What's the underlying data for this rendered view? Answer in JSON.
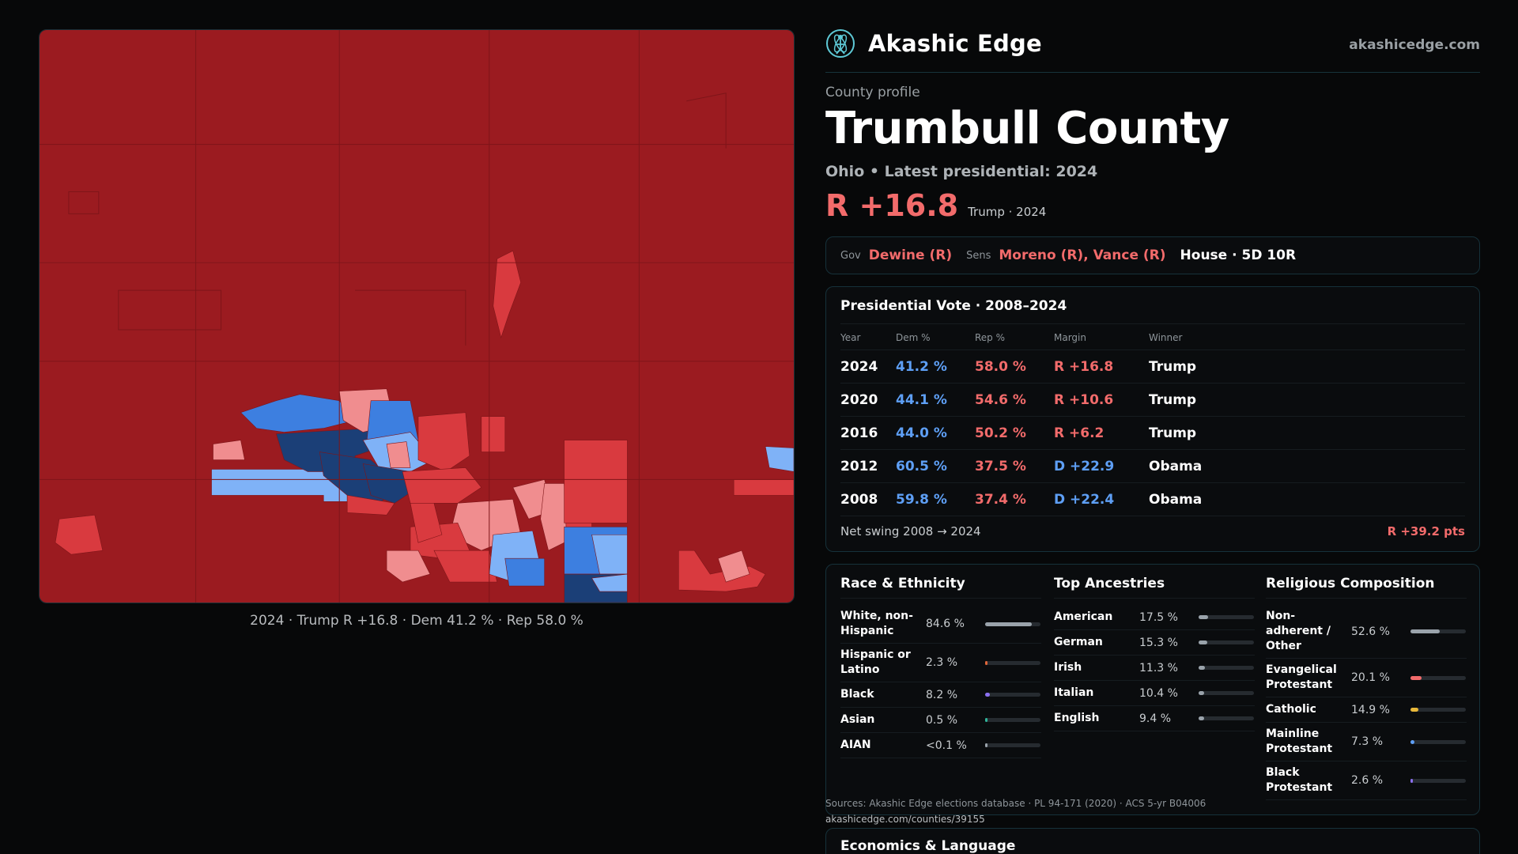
{
  "header": {
    "brand_name": "Akashic Edge",
    "brand_domain": "akashicedge.com",
    "logo_icon": "atom-figure-icon"
  },
  "profile": {
    "eyebrow": "County profile",
    "title": "Trumbull County",
    "subtitle": "Ohio • Latest presidential: 2024",
    "margin": "R +16.8",
    "margin_meta": "Trump · 2024"
  },
  "officials": {
    "gov_label": "Gov",
    "gov_value": "Dewine (R)",
    "sens_label": "Sens",
    "sens_value": "Moreno (R), Vance (R)",
    "house": "House · 5D 10R"
  },
  "map": {
    "caption": "2024 · Trump R +16.8 · Dem 41.2 % · Rep 58.0 %",
    "colors": {
      "safe_r": "#9b1b20",
      "lean_r": "#d93a3f",
      "tilt_r": "#f08d8f",
      "tilt_d": "#7fb2f7",
      "lean_d": "#3d7fe0",
      "safe_d": "#1b3f77"
    }
  },
  "presidential": {
    "title": "Presidential Vote · 2008–2024",
    "headers": [
      "Year",
      "Dem %",
      "Rep %",
      "Margin",
      "Winner"
    ],
    "rows": [
      {
        "year": "2024",
        "dem": "41.2 %",
        "rep": "58.0 %",
        "margin": "R +16.8",
        "party": "R",
        "winner": "Trump"
      },
      {
        "year": "2020",
        "dem": "44.1 %",
        "rep": "54.6 %",
        "margin": "R +10.6",
        "party": "R",
        "winner": "Trump"
      },
      {
        "year": "2016",
        "dem": "44.0 %",
        "rep": "50.2 %",
        "margin": "R +6.2",
        "party": "R",
        "winner": "Trump"
      },
      {
        "year": "2012",
        "dem": "60.5 %",
        "rep": "37.5 %",
        "margin": "D +22.9",
        "party": "D",
        "winner": "Obama"
      },
      {
        "year": "2008",
        "dem": "59.8 %",
        "rep": "37.4 %",
        "margin": "D +22.4",
        "party": "D",
        "winner": "Obama"
      }
    ],
    "swing_label": "Net swing 2008 → 2024",
    "swing_value": "R +39.2 pts"
  },
  "race": {
    "title": "Race & Ethnicity",
    "rows": [
      {
        "label": "White, non-Hispanic",
        "value": "84.6 %",
        "fraction": 0.846,
        "color": "#9aa3ab"
      },
      {
        "label": "Hispanic or Latino",
        "value": "2.3 %",
        "fraction": 0.023,
        "color": "#e0663a"
      },
      {
        "label": "Black",
        "value": "8.2 %",
        "fraction": 0.082,
        "color": "#8b6ff0"
      },
      {
        "label": "Asian",
        "value": "0.5 %",
        "fraction": 0.005,
        "color": "#2fb59a"
      },
      {
        "label": "AIAN",
        "value": "<0.1 %",
        "fraction": 0.001,
        "color": "#9aa3ab"
      }
    ]
  },
  "ancestry": {
    "title": "Top Ancestries",
    "rows": [
      {
        "label": "American",
        "value": "17.5 %",
        "fraction": 0.175,
        "color": "#9aa3ab"
      },
      {
        "label": "German",
        "value": "15.3 %",
        "fraction": 0.153,
        "color": "#9aa3ab"
      },
      {
        "label": "Irish",
        "value": "11.3 %",
        "fraction": 0.113,
        "color": "#9aa3ab"
      },
      {
        "label": "Italian",
        "value": "10.4 %",
        "fraction": 0.104,
        "color": "#9aa3ab"
      },
      {
        "label": "English",
        "value": "9.4 %",
        "fraction": 0.094,
        "color": "#9aa3ab"
      }
    ]
  },
  "religion": {
    "title": "Religious Composition",
    "rows": [
      {
        "label": "Non-adherent / Other",
        "value": "52.6 %",
        "fraction": 0.526,
        "color": "#9aa3ab"
      },
      {
        "label": "Evangelical Protestant",
        "value": "20.1 %",
        "fraction": 0.201,
        "color": "#f26b6b"
      },
      {
        "label": "Catholic",
        "value": "14.9 %",
        "fraction": 0.149,
        "color": "#e8b83a"
      },
      {
        "label": "Mainline Protestant",
        "value": "7.3 %",
        "fraction": 0.073,
        "color": "#5e9ff5"
      },
      {
        "label": "Black Protestant",
        "value": "2.6 %",
        "fraction": 0.026,
        "color": "#8b6ff0"
      }
    ]
  },
  "sources": {
    "text": "Sources: Akashic Edge elections database · PL 94-171 (2020) · ACS 5-yr B04006",
    "url": "akashicedge.com/counties/39155"
  },
  "economics": {
    "title": "Economics & Language"
  }
}
